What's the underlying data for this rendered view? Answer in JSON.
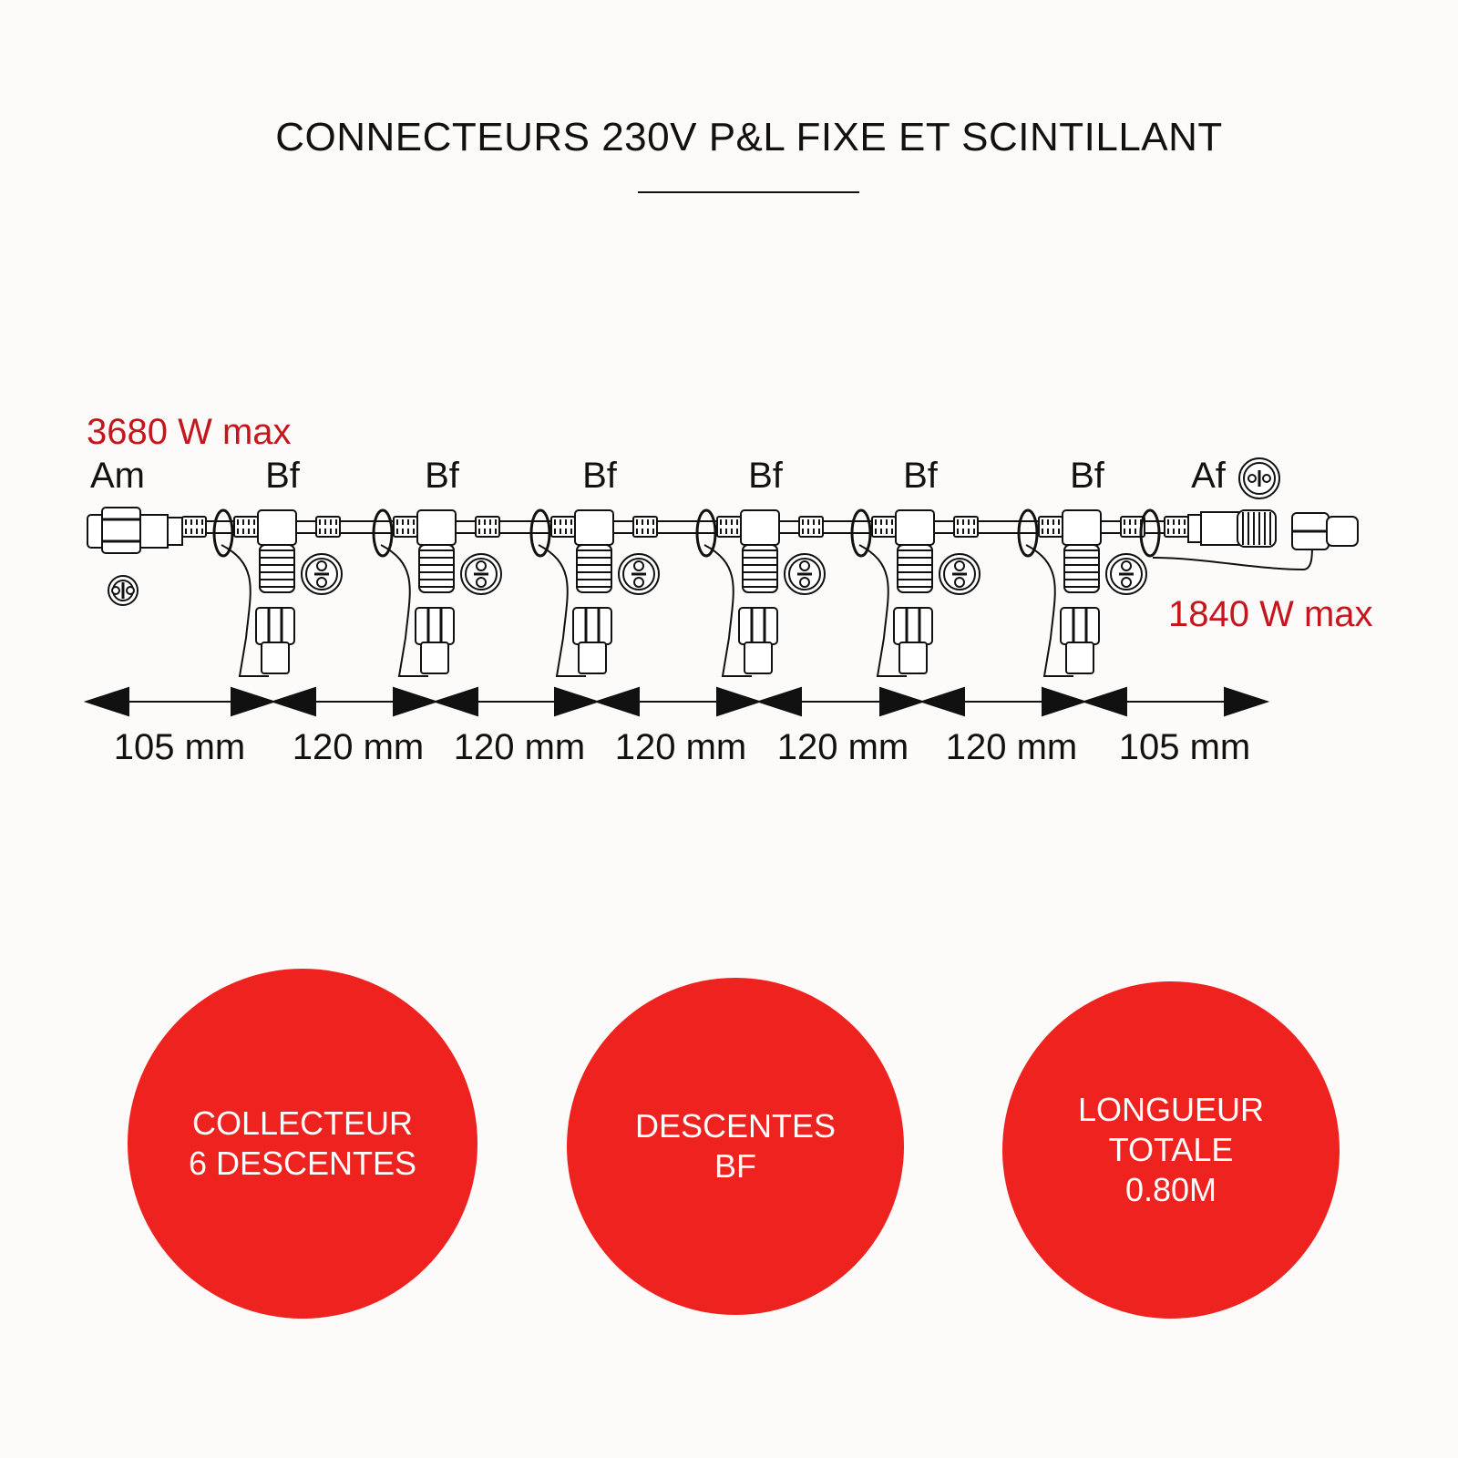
{
  "title": "CONNECTEURS 230V P&L FIXE ET SCINTILLANT",
  "diagram": {
    "input_power": "3680 W max",
    "output_power": "1840 W max",
    "input_label": "Am",
    "output_label": "Af",
    "drop_labels": [
      "Bf",
      "Bf",
      "Bf",
      "Bf",
      "Bf",
      "Bf"
    ],
    "dimensions": [
      "105 mm",
      "120 mm",
      "120 mm",
      "120 mm",
      "120 mm",
      "120 mm",
      "105 mm"
    ]
  },
  "features": [
    {
      "lines": [
        "COLLECTEUR",
        "6 DESCENTES"
      ]
    },
    {
      "lines": [
        "DESCENTES",
        "BF"
      ]
    },
    {
      "lines": [
        "LONGUEUR",
        "TOTALE",
        "0.80M"
      ]
    }
  ],
  "colors": {
    "accent": "#ee2320",
    "power_text": "#c4161c"
  }
}
